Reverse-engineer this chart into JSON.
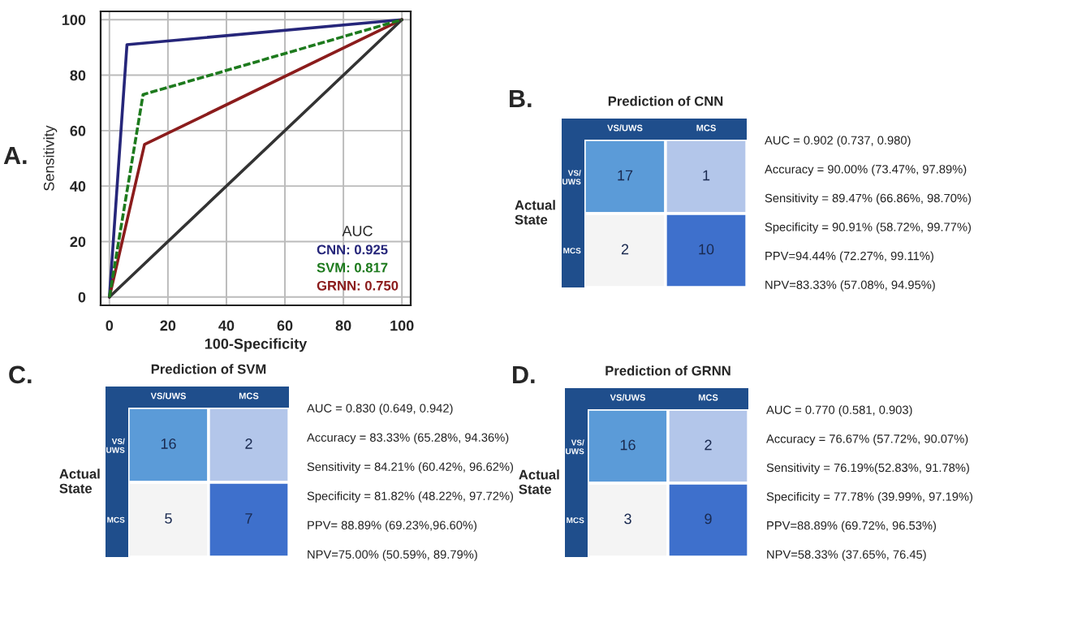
{
  "chart_data": [
    {
      "type": "line",
      "xlabel": "100-Specificity",
      "ylabel": "Sensitivity",
      "legend_title": "AUC",
      "legend": "bottom right",
      "grid": true,
      "xlim": [
        -3,
        103
      ],
      "ylim": [
        -3,
        103
      ],
      "xticks": [
        0,
        20,
        40,
        60,
        80,
        100
      ],
      "yticks": [
        0,
        20,
        40,
        60,
        80,
        100
      ],
      "annotations": [
        "A."
      ],
      "series": [
        {
          "name": "CNN: 0.925",
          "color": "#26267a",
          "x": [
            0,
            6,
            100
          ],
          "values": [
            0,
            91,
            100
          ]
        },
        {
          "name": "SVM: 0.817",
          "color": "#1d7a1d",
          "x": [
            0,
            11.5,
            100
          ],
          "values": [
            0,
            73,
            100
          ],
          "line_style": "dashed"
        },
        {
          "name": "GRNN: 0.750",
          "color": "#8b1c1c",
          "x": [
            0,
            12,
            100
          ],
          "values": [
            0,
            55,
            100
          ]
        },
        {
          "color": "#333333",
          "x": [
            0,
            100
          ],
          "values": [
            0,
            100
          ]
        }
      ]
    },
    {
      "type": "heatmap",
      "title": "Prediction of CNN",
      "ylabel": "Actual\nState",
      "data_labels": true,
      "categories": [
        "VS/UWS",
        "MCS"
      ],
      "y_categories": [
        "VS/\nUWS",
        "MCS"
      ],
      "cells": [
        [
          17,
          1
        ],
        [
          2,
          10
        ]
      ],
      "colors": [
        [
          "#5b9bd8",
          "#b3c6ea"
        ],
        [
          "#f4f4f4",
          "#3e70cc"
        ]
      ],
      "annotations": [
        "B.",
        "AUC = 0.902 (0.737, 0.980)",
        "Accuracy = 90.00% (73.47%, 97.89%)",
        "Sensitivity = 89.47% (66.86%, 98.70%)",
        "Specificity = 90.91% (58.72%, 99.77%)",
        "PPV=94.44% (72.27%, 99.11%)",
        "NPV=83.33% (57.08%, 94.95%)"
      ]
    },
    {
      "type": "heatmap",
      "title": "Prediction of SVM",
      "ylabel": "Actual\nState",
      "data_labels": true,
      "categories": [
        "VS/UWS",
        "MCS"
      ],
      "y_categories": [
        "VS/\nUWS",
        "MCS"
      ],
      "cells": [
        [
          16,
          2
        ],
        [
          5,
          7
        ]
      ],
      "colors": [
        [
          "#5b9bd8",
          "#b3c6ea"
        ],
        [
          "#f4f4f4",
          "#3e70cc"
        ]
      ],
      "annotations": [
        "C.",
        "AUC = 0.830 (0.649, 0.942)",
        "Accuracy = 83.33% (65.28%, 94.36%)",
        "Sensitivity = 84.21% (60.42%, 96.62%)",
        "Specificity = 81.82% (48.22%, 97.72%)",
        "PPV= 88.89% (69.23%,96.60%)",
        "NPV=75.00% (50.59%, 89.79%)"
      ]
    },
    {
      "type": "heatmap",
      "title": "Prediction of GRNN",
      "ylabel": "Actual\nState",
      "data_labels": true,
      "categories": [
        "VS/UWS",
        "MCS"
      ],
      "y_categories": [
        "VS/\nUWS",
        "MCS"
      ],
      "cells": [
        [
          16,
          2
        ],
        [
          3,
          9
        ]
      ],
      "colors": [
        [
          "#5b9bd8",
          "#b3c6ea"
        ],
        [
          "#f4f4f4",
          "#3e70cc"
        ]
      ],
      "annotations": [
        "D.",
        "AUC = 0.770 (0.581, 0.903)",
        "Accuracy = 76.67% (57.72%, 90.07%)",
        "Sensitivity = 76.19%(52.83%, 91.78%)",
        "Specificity = 77.78% (39.99%, 97.19%)",
        "PPV=88.89% (69.72%, 96.53%)",
        "NPV=58.33% (37.65%, 76.45)"
      ]
    }
  ]
}
